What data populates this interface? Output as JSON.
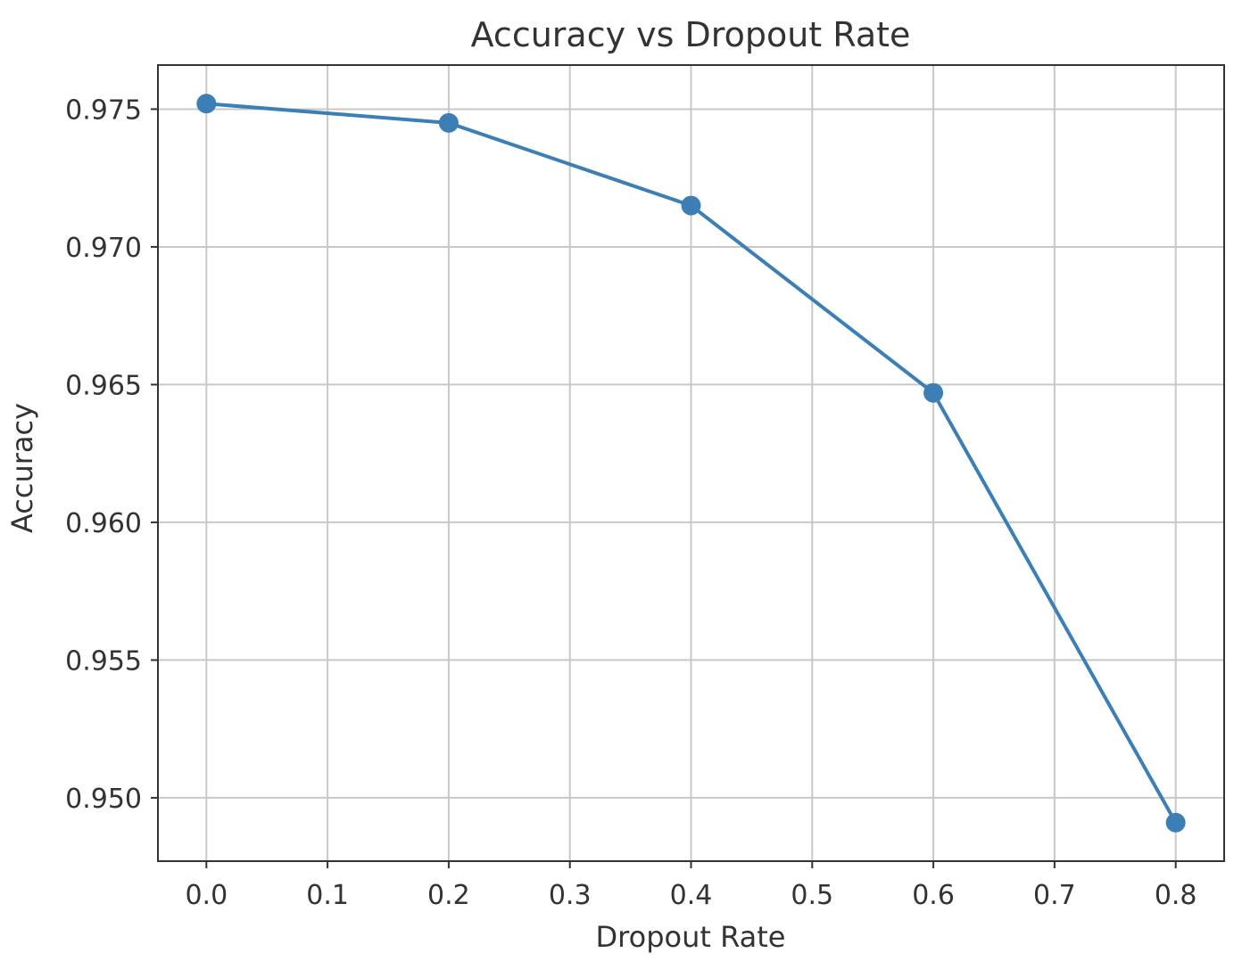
{
  "chart_data": {
    "type": "line",
    "title": "Accuracy vs Dropout Rate",
    "xlabel": "Dropout Rate",
    "ylabel": "Accuracy",
    "xlim": [
      -0.04,
      0.84
    ],
    "ylim": [
      0.9477,
      0.9766
    ],
    "xticks": [
      0.0,
      0.1,
      0.2,
      0.3,
      0.4,
      0.5,
      0.6,
      0.7,
      0.8
    ],
    "xtick_labels": [
      "0.0",
      "0.1",
      "0.2",
      "0.3",
      "0.4",
      "0.5",
      "0.6",
      "0.7",
      "0.8"
    ],
    "yticks": [
      0.95,
      0.955,
      0.96,
      0.965,
      0.97,
      0.975
    ],
    "ytick_labels": [
      "0.950",
      "0.955",
      "0.960",
      "0.965",
      "0.970",
      "0.975"
    ],
    "grid": true,
    "series": [
      {
        "color": "#3b7fb6",
        "marker": "circle",
        "x": [
          0.0,
          0.2,
          0.4,
          0.6,
          0.8
        ],
        "y": [
          0.9752,
          0.9745,
          0.9715,
          0.9647,
          0.9491
        ]
      }
    ]
  }
}
